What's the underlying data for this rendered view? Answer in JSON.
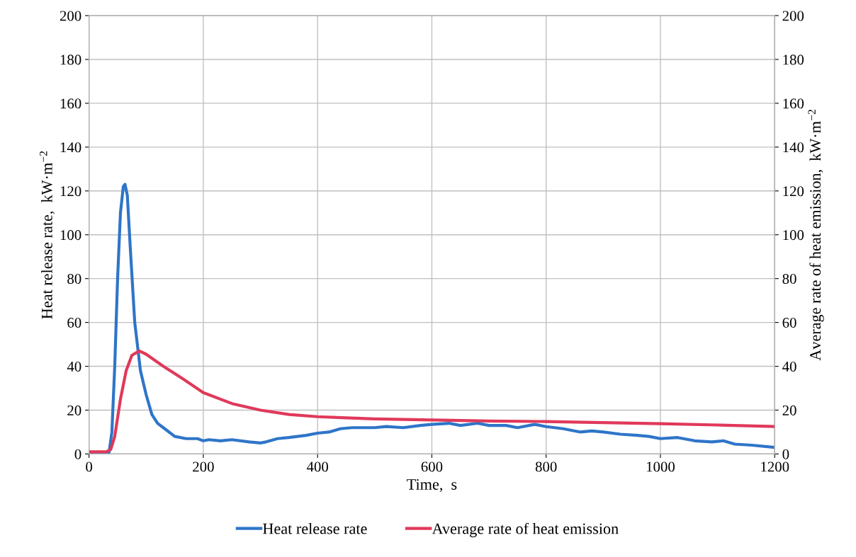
{
  "chart_data": {
    "type": "line",
    "xlabel": "Time,  s",
    "ylabel": "Heat release rate,  kW·m$^{−2}$",
    "y2label": "Average rate of heat emission,  kW·m$^{−2}$",
    "xlim": [
      0,
      1200
    ],
    "xticks": [
      0,
      200,
      400,
      600,
      800,
      1000,
      1200
    ],
    "ylim": [
      0,
      200
    ],
    "yticks": [
      0,
      20,
      40,
      60,
      80,
      100,
      120,
      140,
      160,
      180,
      200
    ],
    "y2lim": [
      0,
      200
    ],
    "y2ticks": [
      0,
      20,
      40,
      60,
      80,
      100,
      120,
      140,
      160,
      180,
      200
    ],
    "grid": true,
    "legend": "bottom",
    "marker": "none",
    "line_style": "solid",
    "series": [
      {
        "name": "Heat release rate",
        "color": "#2e75c8",
        "x": [
          0,
          35,
          40,
          45,
          50,
          55,
          60,
          63,
          67,
          72,
          80,
          90,
          100,
          110,
          120,
          130,
          150,
          170,
          190,
          200,
          210,
          230,
          250,
          280,
          300,
          310,
          330,
          350,
          380,
          400,
          420,
          440,
          460,
          500,
          520,
          550,
          580,
          600,
          630,
          650,
          680,
          700,
          730,
          750,
          780,
          800,
          830,
          860,
          880,
          900,
          930,
          960,
          980,
          1000,
          1030,
          1060,
          1090,
          1110,
          1130,
          1160,
          1200
        ],
        "values": [
          0.5,
          0.5,
          10,
          40,
          80,
          110,
          122,
          123,
          118,
          95,
          60,
          38,
          27,
          18,
          14,
          12,
          8,
          7,
          7,
          6,
          6.5,
          6,
          6.5,
          5.5,
          5,
          5.5,
          7,
          7.5,
          8.5,
          9.5,
          10,
          11.5,
          12,
          12,
          12.5,
          12,
          13,
          13.5,
          14,
          13,
          14,
          13,
          13,
          12,
          13.5,
          12.5,
          11.5,
          10,
          10.5,
          10,
          9,
          8.5,
          8,
          7,
          7.5,
          6,
          5.5,
          6,
          4.5,
          4,
          3
        ]
      },
      {
        "name": "Average rate of heat emission",
        "color": "#e0395a",
        "axis": "y2",
        "x": [
          0,
          30,
          38,
          45,
          55,
          65,
          75,
          88,
          100,
          130,
          160,
          200,
          250,
          300,
          350,
          400,
          450,
          500,
          600,
          700,
          800,
          900,
          1000,
          1100,
          1200
        ],
        "values": [
          1,
          1,
          2,
          8,
          25,
          38,
          45,
          47,
          45.5,
          40,
          35,
          28,
          23,
          20,
          18,
          17,
          16.5,
          16,
          15.5,
          15,
          14.8,
          14.3,
          13.8,
          13.2,
          12.5
        ]
      }
    ]
  }
}
